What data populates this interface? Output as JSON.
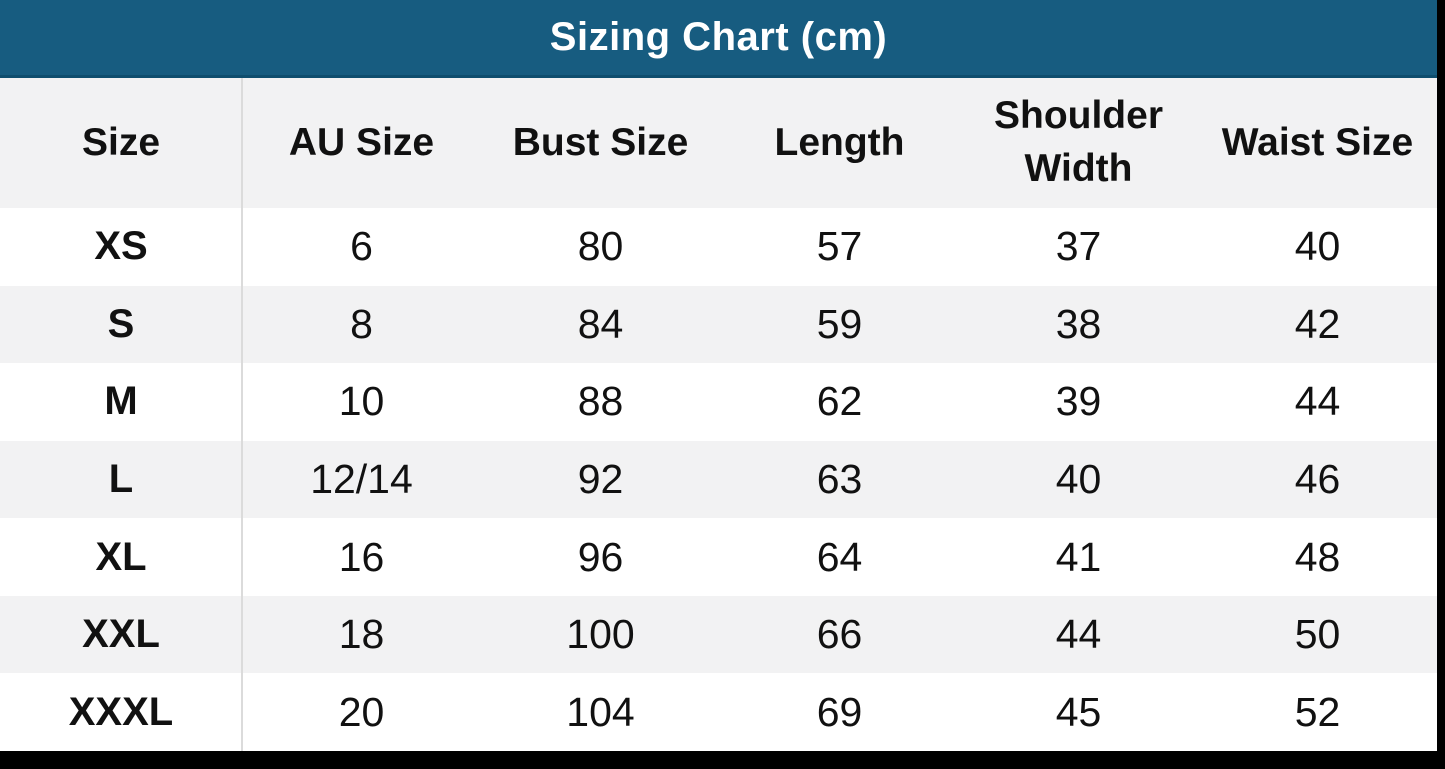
{
  "chart_data": {
    "type": "table",
    "title": "Sizing Chart (cm)",
    "columns": [
      "Size",
      "AU Size",
      "Bust Size",
      "Length",
      "Shoulder Width",
      "Waist Size"
    ],
    "rows": [
      [
        "XS",
        "6",
        "80",
        "57",
        "37",
        "40"
      ],
      [
        "S",
        "8",
        "84",
        "59",
        "38",
        "42"
      ],
      [
        "M",
        "10",
        "88",
        "62",
        "39",
        "44"
      ],
      [
        "L",
        "12/14",
        "92",
        "63",
        "40",
        "46"
      ],
      [
        "XL",
        "16",
        "96",
        "64",
        "41",
        "48"
      ],
      [
        "XXL",
        "18",
        "100",
        "66",
        "44",
        "50"
      ],
      [
        "XXXL",
        "20",
        "104",
        "69",
        "45",
        "52"
      ]
    ],
    "layout": {
      "first_column_bold": true,
      "zebra_striping": "odd rows white, even rows light gray",
      "title_position": "top banner, centered"
    }
  },
  "colors": {
    "title_bar": "#175C80",
    "title_bar_edge": "#0F4E6E",
    "title_text": "#FFFFFF",
    "header_row_bg": "#F2F2F3",
    "stripe_bg": "#F2F2F3",
    "row_bg": "#FFFFFF",
    "column_separator": "#DBDBDB",
    "text": "#111111",
    "page_background": "#000000"
  }
}
